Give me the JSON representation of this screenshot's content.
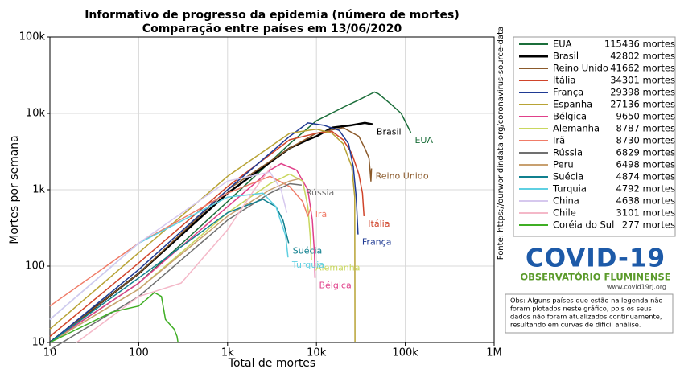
{
  "chart_data": {
    "type": "line",
    "title": "Informativo de progresso da epidemia (número de mortes)",
    "subtitle": "Comparação entre países em 13/06/2020",
    "x_label": "Total de mortes",
    "y_label": "Mortes por semana",
    "source": "Fonte: https://ourworldindata.org/coronavirus-source-data",
    "x_log": true,
    "y_log": true,
    "grid": true,
    "xlim": [
      10,
      1000000
    ],
    "xticks": [
      10,
      100,
      {
        "value": 1000,
        "label": "1k"
      },
      {
        "value": 10000,
        "label": "10k"
      },
      {
        "value": 100000,
        "label": "100k"
      },
      {
        "value": 1000000,
        "label": "1M"
      }
    ],
    "ylim": [
      10,
      100000
    ],
    "yticks": [
      10,
      100,
      {
        "value": 1000,
        "label": "1k"
      },
      {
        "value": 10000,
        "label": "10k"
      },
      {
        "value": 100000,
        "label": "100k"
      }
    ],
    "series": [
      {
        "name": "EUA",
        "color": "#1b6e3a",
        "legend_value": "115436 mortes",
        "end_label": true,
        "width": 1.5,
        "x": [
          10,
          100,
          1000,
          5000,
          10000,
          20000,
          30000,
          45000,
          50000,
          70000,
          90000,
          115436
        ],
        "values": [
          10,
          60,
          700,
          4000,
          8000,
          12000,
          15000,
          19000,
          18000,
          13000,
          10000,
          5600
        ]
      },
      {
        "name": "Brasil",
        "color": "#000000",
        "legend_value": "42802 mortes",
        "end_label": true,
        "width": 2.5,
        "x": [
          10,
          100,
          1000,
          5000,
          8000,
          10000,
          15000,
          25000,
          35000,
          42802
        ],
        "values": [
          10,
          80,
          900,
          3500,
          4500,
          5000,
          6500,
          7000,
          7500,
          7200
        ]
      },
      {
        "name": "Reino Unido",
        "color": "#8b5a2b",
        "legend_value": "41662 mortes",
        "end_label": true,
        "width": 1.5,
        "x": [
          10,
          100,
          1000,
          5000,
          10000,
          20000,
          30000,
          35000,
          39000,
          41000,
          41662
        ],
        "values": [
          10,
          80,
          1000,
          3500,
          5500,
          6500,
          5000,
          3500,
          2600,
          1300,
          1900
        ]
      },
      {
        "name": "Itália",
        "color": "#d0442a",
        "legend_value": "34301 mortes",
        "end_label": true,
        "width": 1.5,
        "x": [
          10,
          100,
          1000,
          5000,
          10000,
          15000,
          20000,
          25000,
          30000,
          33000,
          34301
        ],
        "values": [
          12,
          110,
          1100,
          4500,
          5500,
          5800,
          4500,
          3000,
          1600,
          900,
          450
        ]
      },
      {
        "name": "França",
        "color": "#1f3a93",
        "legend_value": "29398 mortes",
        "end_label": true,
        "width": 1.5,
        "x": [
          10,
          100,
          1000,
          5000,
          8000,
          12000,
          18000,
          23000,
          26000,
          28000,
          29398
        ],
        "values": [
          10,
          90,
          1000,
          5000,
          7500,
          7000,
          6000,
          4000,
          2000,
          800,
          260
        ]
      },
      {
        "name": "Espanha",
        "color": "#b8a335",
        "legend_value": "27136 mortes",
        "end_label": false,
        "width": 1.5,
        "x": [
          10,
          100,
          1000,
          5000,
          10000,
          15000,
          20000,
          25000,
          27000,
          27136
        ],
        "values": [
          15,
          150,
          1500,
          5500,
          6200,
          5500,
          4000,
          2000,
          800,
          10
        ]
      },
      {
        "name": "Bélgica",
        "color": "#e0408a",
        "legend_value": "9650 mortes",
        "end_label": true,
        "width": 1.5,
        "x": [
          10,
          100,
          1000,
          3000,
          4000,
          6000,
          8000,
          9000,
          9500,
          9650
        ],
        "values": [
          10,
          60,
          600,
          1800,
          2200,
          1800,
          1000,
          400,
          150,
          70
        ]
      },
      {
        "name": "Alemanha",
        "color": "#c9d75f",
        "legend_value": "8787 mortes",
        "end_label": true,
        "width": 1.5,
        "x": [
          10,
          100,
          1000,
          3000,
          5000,
          7000,
          8000,
          8500,
          8787
        ],
        "values": [
          10,
          50,
          500,
          1200,
          1600,
          1300,
          600,
          250,
          120
        ]
      },
      {
        "name": "Irã",
        "color": "#f07c68",
        "legend_value": "8730 mortes",
        "end_label": true,
        "width": 1.5,
        "x": [
          10,
          100,
          1000,
          3000,
          5000,
          7000,
          8000,
          8730
        ],
        "values": [
          30,
          200,
          900,
          1500,
          1100,
          700,
          450,
          600
        ]
      },
      {
        "name": "Rússia",
        "color": "#707070",
        "legend_value": "6829 mortes",
        "end_label": true,
        "width": 1.5,
        "x": [
          10,
          100,
          1000,
          3000,
          5000,
          6829
        ],
        "values": [
          8,
          40,
          400,
          900,
          1200,
          1150
        ]
      },
      {
        "name": "Peru",
        "color": "#c8a070",
        "legend_value": "6498 mortes",
        "end_label": false,
        "width": 1.5,
        "x": [
          10,
          100,
          1000,
          3000,
          5000,
          6498
        ],
        "values": [
          10,
          50,
          450,
          1000,
          1300,
          1400
        ]
      },
      {
        "name": "Suécia",
        "color": "#10808f",
        "legend_value": "4874 mortes",
        "end_label": true,
        "width": 1.5,
        "x": [
          10,
          100,
          1000,
          2500,
          3500,
          4200,
          4874
        ],
        "values": [
          10,
          70,
          500,
          750,
          600,
          400,
          200
        ]
      },
      {
        "name": "Turquia",
        "color": "#5fd0e2",
        "legend_value": "4792 mortes",
        "end_label": true,
        "width": 1.5,
        "x": [
          10,
          100,
          1000,
          2500,
          3500,
          4500,
          4792
        ],
        "values": [
          20,
          200,
          800,
          900,
          600,
          250,
          130
        ]
      },
      {
        "name": "China",
        "color": "#d6c8ee",
        "legend_value": "4638 mortes",
        "end_label": false,
        "width": 1.5,
        "x": [
          10,
          100,
          1000,
          3000,
          4000,
          4638
        ],
        "values": [
          20,
          200,
          1300,
          1700,
          1000,
          500
        ]
      },
      {
        "name": "Chile",
        "color": "#f4b8c8",
        "legend_value": "3101 mortes",
        "end_label": false,
        "width": 1.5,
        "x": [
          20,
          100,
          300,
          1000,
          2000,
          3101
        ],
        "values": [
          10,
          40,
          60,
          300,
          1000,
          2000
        ]
      },
      {
        "name": "Coréia do Sul",
        "color": "#3fae24",
        "legend_value": "277 mortes",
        "end_label": false,
        "width": 1.5,
        "x": [
          10,
          50,
          100,
          150,
          180,
          200,
          250,
          270,
          277
        ],
        "values": [
          10,
          25,
          30,
          45,
          40,
          20,
          15,
          12,
          10
        ]
      }
    ]
  },
  "logo": {
    "title": "COVID-19",
    "subtitle": "OBSERVATÓRIO FLUMINENSE",
    "url": "www.covid19rj.org"
  },
  "note": [
    "Obs: Alguns países que estão na legenda não",
    "foram plotados neste gráfico, pois os seus",
    "dados não foram atualizados continuamente,",
    "resultando em curvas de difícil análise."
  ]
}
